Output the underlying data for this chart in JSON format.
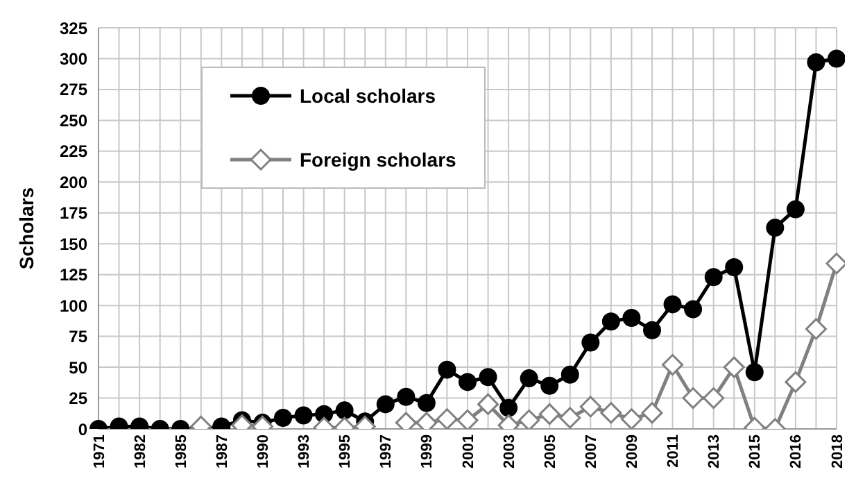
{
  "chart_data": {
    "type": "line",
    "ylabel": "Scholars",
    "categories": [
      "1971",
      null,
      "1982",
      null,
      "1985",
      null,
      "1987",
      null,
      "1990",
      null,
      "1993",
      null,
      "1995",
      null,
      "1997",
      null,
      "1999",
      null,
      "2001",
      null,
      "2003",
      null,
      "2005",
      null,
      "2007",
      null,
      "2009",
      null,
      "2011",
      null,
      "2013",
      null,
      "2015",
      null,
      "2016",
      null,
      "2018"
    ],
    "series": [
      {
        "name": "Local scholars",
        "color": "#000000",
        "marker": "circle",
        "values": [
          0,
          2,
          2,
          0,
          0,
          0,
          2,
          7,
          5,
          9,
          11,
          12,
          15,
          6,
          20,
          26,
          21,
          48,
          38,
          42,
          17,
          41,
          35,
          44,
          70,
          87,
          90,
          80,
          101,
          97,
          123,
          131,
          46,
          163,
          178,
          297,
          300
        ]
      },
      {
        "name": "Foreign scholars",
        "color": "#808080",
        "marker": "diamond",
        "values": [
          null,
          null,
          null,
          null,
          null,
          2,
          null,
          3,
          2,
          null,
          null,
          1,
          1,
          2,
          null,
          5,
          5,
          8,
          7,
          20,
          3,
          7,
          12,
          9,
          18,
          13,
          8,
          13,
          52,
          25,
          25,
          50,
          1,
          0,
          38,
          81,
          134
        ]
      }
    ],
    "ylim": [
      0,
      325
    ],
    "yticks": [
      0,
      25,
      50,
      75,
      100,
      125,
      150,
      175,
      200,
      225,
      250,
      275,
      300,
      325
    ],
    "grid": true,
    "legend": "top left"
  }
}
